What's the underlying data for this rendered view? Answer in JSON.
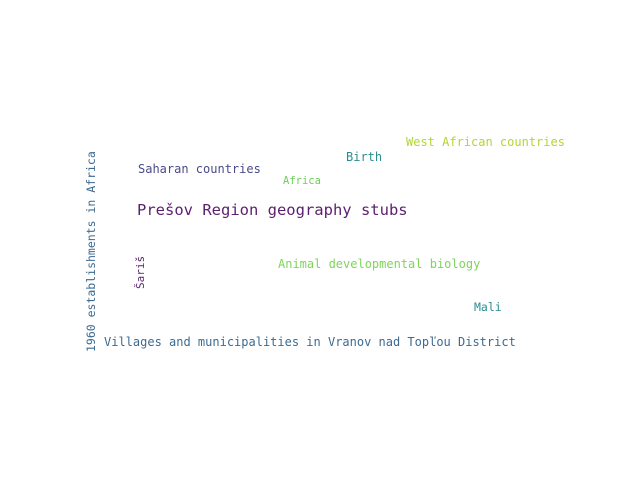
{
  "words": [
    {
      "id": "presov",
      "text": "Prešov Region geography stubs",
      "color": "#5b1f6e",
      "orientation": "horizontal"
    },
    {
      "id": "villages",
      "text": "Villages and municipalities in Vranov nad Topľou District",
      "color": "#3e6a91",
      "orientation": "horizontal"
    },
    {
      "id": "est1960",
      "text": "1960 establishments in Africa",
      "color": "#3e6a91",
      "orientation": "vertical"
    },
    {
      "id": "west",
      "text": "West African countries",
      "color": "#b2d62f",
      "orientation": "horizontal"
    },
    {
      "id": "saharan",
      "text": "Saharan countries",
      "color": "#4a4a8a",
      "orientation": "horizontal"
    },
    {
      "id": "animal",
      "text": "Animal developmental biology",
      "color": "#7ed55a",
      "orientation": "horizontal"
    },
    {
      "id": "birth",
      "text": "Birth",
      "color": "#2b8c8e",
      "orientation": "horizontal"
    },
    {
      "id": "africa",
      "text": "Africa",
      "color": "#6ccf5b",
      "orientation": "horizontal"
    },
    {
      "id": "saris",
      "text": "Šariš",
      "color": "#5b1f6e",
      "orientation": "vertical"
    },
    {
      "id": "mali",
      "text": "Mali",
      "color": "#2b8c8e",
      "orientation": "horizontal"
    }
  ]
}
